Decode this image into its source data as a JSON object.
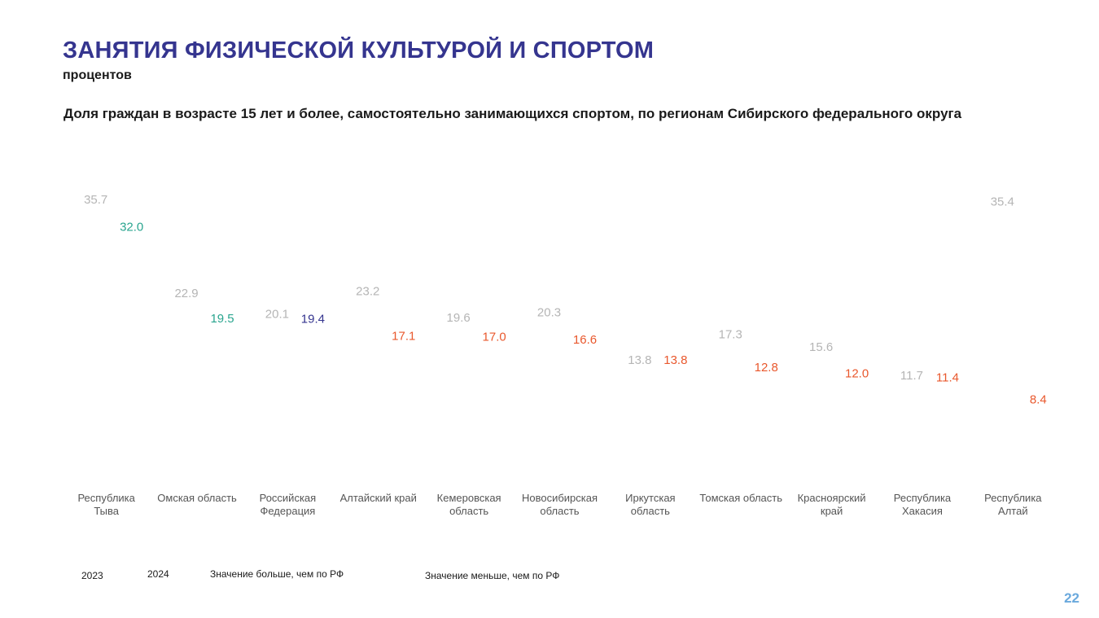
{
  "header": {
    "title": "ЗАНЯТИЯ ФИЗИЧЕСКОЙ КУЛЬТУРОЙ И СПОРТОМ",
    "unit": "процентов",
    "subtitle": "Доля граждан в возрасте 15 лет и более, самостоятельно занимающихся спортом, по регионам Сибирского федерального округа"
  },
  "chart_data": {
    "type": "dot",
    "title": "Доля граждан в возрасте 15 лет и более, самостоятельно занимающихся спортом, по регионам Сибирского федерального округа",
    "categories": [
      [
        "Республика",
        "Тыва"
      ],
      [
        "Омская область"
      ],
      [
        "Российская",
        "Федерация"
      ],
      [
        "Алтайский край"
      ],
      [
        "Кемеровская",
        "область"
      ],
      [
        "Новосибирская",
        "область"
      ],
      [
        "Иркутская",
        "область"
      ],
      [
        "Томская область"
      ],
      [
        "Красноярский",
        "край"
      ],
      [
        "Республика",
        "Хакасия"
      ],
      [
        "Республика",
        "Алтай"
      ]
    ],
    "series": [
      {
        "name": "2023",
        "values": [
          35.7,
          22.9,
          20.1,
          23.2,
          19.6,
          20.3,
          13.8,
          17.3,
          15.6,
          11.7,
          35.4
        ]
      },
      {
        "name": "2024",
        "values": [
          32.0,
          19.5,
          19.4,
          17.1,
          17.0,
          16.6,
          13.8,
          12.8,
          12.0,
          11.4,
          8.4
        ]
      }
    ],
    "value_status_2024": [
      "above",
      "above",
      "reference",
      "below",
      "below",
      "below",
      "below",
      "below",
      "below",
      "below",
      "below"
    ],
    "ylim": [
      0,
      40
    ],
    "grid": false,
    "legend": {
      "placement": "bottom-left",
      "items": [
        "2023",
        "2024",
        "Значение больше, чем по РФ",
        "Значение меньше, чем по РФ"
      ]
    },
    "colors": {
      "2023": "#b5b5b5",
      "reference": "#35358f",
      "above": "#2aa58f",
      "below": "#e9582d"
    }
  },
  "footer": {
    "page_number": "22"
  }
}
